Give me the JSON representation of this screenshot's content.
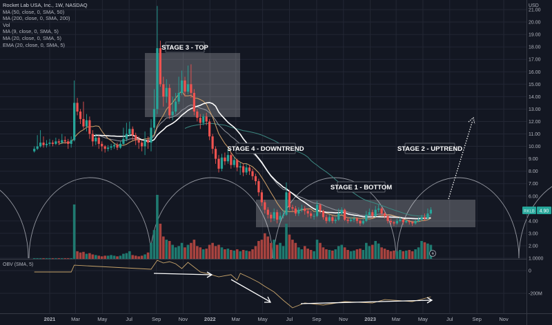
{
  "legend": {
    "title": "Rocket Lab USA, Inc., 1W, NASDAQ",
    "lines": [
      "MA (50, close, 0, SMA, 50)",
      "MA (200, close, 0, SMA, 200)",
      "Vol",
      "MA (9, close, 0, SMA, 5)",
      "MA (20, close, 0, SMA, 5)",
      "EMA (20, close, 0, SMA, 5)"
    ]
  },
  "obv_label": "OBV (SMA, 5)",
  "price_tag": {
    "symbol": "RKLB",
    "value": "4.90",
    "color": "#26a69a"
  },
  "annotations": {
    "stage3": "STAGE 3 - TOP",
    "stage4": "STAGE 4 - DOWNTREND",
    "stage1": "STAGE 1 - BOTTOM",
    "stage2": "STAGE 2 - UPTREND"
  },
  "colors": {
    "background": "#131722",
    "grid": "#232734",
    "up": "#26a69a",
    "down": "#ef5350",
    "up_volume": "#1f7a70",
    "down_volume": "#a8433f",
    "obv": "#c8a46a",
    "ma9": "#d4a36a",
    "ma20": "#ffffff",
    "ema20": "#9598a1",
    "ma50": "#3d8a83"
  },
  "chart_data": {
    "type": "candlestick",
    "interval": "1W",
    "currency": "USD",
    "start_week": "2020-11-27",
    "ylim": [
      1,
      21
    ],
    "y_ticks": [
      "21.00",
      "20.00",
      "19.00",
      "18.00",
      "17.00",
      "16.00",
      "15.00",
      "14.00",
      "13.00",
      "12.00",
      "11.00",
      "10.00",
      "9.00",
      "8.00",
      "7.00",
      "6.00",
      "4.00",
      "3.00",
      "2.00",
      "1.0000"
    ],
    "obv_ticks": [
      {
        "value": 0,
        "label": "0"
      },
      {
        "value": -200,
        "label": "-200M"
      }
    ],
    "x_ticks": [
      {
        "date": "2021-01-01",
        "label": "2021"
      },
      {
        "date": "2021-03-01",
        "label": "Mar"
      },
      {
        "date": "2021-05-01",
        "label": "May"
      },
      {
        "date": "2021-07-01",
        "label": "Jul"
      },
      {
        "date": "2021-09-01",
        "label": "Sep"
      },
      {
        "date": "2021-11-01",
        "label": "Nov"
      },
      {
        "date": "2022-01-01",
        "label": "2022"
      },
      {
        "date": "2022-03-01",
        "label": "Mar"
      },
      {
        "date": "2022-05-01",
        "label": "May"
      },
      {
        "date": "2022-07-01",
        "label": "Jul"
      },
      {
        "date": "2022-09-01",
        "label": "Sep"
      },
      {
        "date": "2022-11-01",
        "label": "Nov"
      },
      {
        "date": "2023-01-01",
        "label": "2023"
      },
      {
        "date": "2023-03-01",
        "label": "Mar"
      },
      {
        "date": "2023-05-01",
        "label": "May"
      },
      {
        "date": "2023-07-01",
        "label": "Jul"
      },
      {
        "date": "2023-09-01",
        "label": "Sep"
      },
      {
        "date": "2023-11-01",
        "label": "Nov"
      }
    ],
    "open": [
      9.6,
      9.8,
      10.0,
      10.3,
      10.1,
      10.2,
      10.3,
      10.2,
      10.4,
      10.3,
      10.5,
      10.4,
      10.2,
      10.5,
      13.5,
      12.8,
      12.2,
      11.6,
      12.1,
      11.0,
      10.4,
      10.7,
      10.2,
      10.0,
      9.8,
      9.9,
      10.0,
      10.1,
      9.9,
      10.2,
      10.6,
      11.0,
      11.4,
      10.9,
      10.5,
      10.3,
      10.0,
      10.5,
      10.3,
      11.5,
      13.0,
      17.9,
      15.0,
      14.0,
      14.7,
      12.5,
      12.8,
      13.6,
      14.3,
      15.3,
      14.4,
      15.0,
      14.3,
      12.8,
      12.3,
      11.9,
      12.4,
      12.0,
      10.8,
      9.8,
      9.0,
      8.2,
      9.1,
      8.8,
      9.3,
      8.5,
      8.9,
      8.3,
      8.4,
      7.9,
      8.3,
      8.0,
      7.6,
      7.2,
      6.3,
      5.5,
      4.9,
      4.5,
      4.2,
      4.7,
      4.1,
      4.4,
      4.5,
      6.3,
      5.1,
      5.0,
      4.6,
      4.9,
      5.0,
      4.8,
      4.6,
      4.4,
      4.4,
      5.3,
      4.8,
      4.3,
      4.0,
      4.3,
      4.0,
      4.1,
      4.6,
      4.9,
      4.1,
      4.0,
      4.1,
      4.2,
      4.0,
      3.8,
      4.0,
      4.5,
      4.7,
      4.4,
      4.9,
      5.0,
      4.6,
      4.4,
      4.0,
      3.9,
      3.8,
      4.0,
      4.1,
      3.9,
      4.0,
      3.9,
      3.8,
      4.0,
      4.1,
      4.3,
      4.2,
      4.6
    ],
    "high": [
      10.0,
      10.9,
      11.3,
      10.8,
      10.5,
      10.6,
      10.5,
      10.7,
      10.6,
      11.0,
      10.8,
      10.6,
      10.8,
      15.3,
      13.9,
      13.0,
      13.6,
      12.6,
      12.4,
      11.3,
      11.0,
      10.9,
      10.4,
      10.1,
      10.1,
      10.2,
      10.3,
      10.3,
      10.4,
      11.5,
      11.9,
      12.0,
      11.6,
      11.1,
      10.8,
      10.5,
      11.2,
      10.8,
      12.2,
      14.6,
      21.3,
      18.5,
      15.6,
      15.4,
      15.0,
      14.0,
      14.3,
      15.6,
      16.1,
      15.6,
      16.5,
      16.6,
      14.6,
      13.0,
      12.6,
      12.6,
      12.7,
      12.2,
      11.0,
      10.0,
      9.3,
      9.4,
      9.5,
      9.8,
      9.5,
      9.2,
      9.0,
      8.7,
      8.6,
      8.6,
      8.5,
      8.2,
      7.8,
      7.4,
      6.5,
      5.7,
      5.1,
      4.7,
      5.0,
      4.9,
      4.7,
      4.9,
      7.1,
      6.5,
      5.3,
      5.2,
      5.1,
      5.3,
      5.2,
      5.0,
      4.8,
      4.6,
      5.6,
      5.4,
      4.9,
      4.5,
      4.5,
      4.4,
      4.3,
      5.0,
      5.1,
      5.0,
      4.3,
      4.3,
      4.4,
      4.3,
      4.1,
      4.2,
      4.8,
      5.0,
      4.9,
      5.2,
      5.3,
      5.1,
      4.7,
      4.5,
      4.2,
      4.0,
      4.2,
      4.3,
      4.2,
      4.1,
      4.1,
      4.0,
      4.1,
      4.3,
      4.5,
      4.6,
      5.0,
      5.1
    ],
    "low": [
      9.5,
      9.7,
      9.9,
      9.9,
      9.9,
      10.0,
      10.0,
      10.1,
      10.1,
      10.2,
      10.2,
      9.8,
      9.9,
      10.4,
      12.5,
      11.8,
      11.4,
      11.2,
      10.6,
      10.0,
      10.1,
      9.8,
      9.6,
      9.5,
      9.6,
      9.7,
      9.8,
      9.7,
      9.8,
      10.1,
      10.4,
      10.8,
      10.5,
      10.1,
      9.8,
      9.6,
      9.3,
      9.8,
      9.6,
      11.0,
      12.6,
      14.8,
      13.2,
      13.5,
      12.2,
      12.1,
      12.6,
      13.4,
      14.1,
      14.0,
      14.2,
      13.9,
      12.5,
      12.0,
      11.4,
      11.7,
      11.7,
      10.5,
      9.4,
      8.6,
      7.9,
      8.0,
      8.5,
      8.6,
      8.2,
      8.3,
      8.0,
      7.7,
      7.6,
      7.7,
      7.7,
      7.3,
      6.9,
      6.0,
      5.2,
      4.6,
      4.2,
      3.9,
      4.0,
      3.8,
      3.9,
      4.2,
      4.4,
      4.9,
      4.7,
      4.4,
      4.4,
      4.7,
      4.5,
      4.3,
      4.2,
      4.1,
      4.3,
      4.6,
      4.1,
      3.8,
      3.9,
      3.8,
      3.8,
      4.0,
      4.5,
      4.0,
      3.8,
      3.9,
      3.9,
      3.8,
      3.6,
      3.7,
      3.9,
      4.4,
      4.2,
      4.3,
      4.7,
      4.4,
      4.2,
      3.8,
      3.7,
      3.6,
      3.7,
      3.9,
      3.7,
      3.8,
      3.7,
      3.6,
      3.7,
      3.9,
      4.0,
      4.0,
      4.1,
      4.5
    ],
    "close": [
      9.8,
      10.0,
      10.3,
      10.1,
      10.2,
      10.3,
      10.2,
      10.4,
      10.3,
      10.5,
      10.4,
      10.2,
      10.5,
      13.5,
      12.8,
      12.2,
      11.6,
      12.1,
      11.0,
      10.4,
      10.7,
      10.2,
      10.0,
      9.8,
      9.9,
      10.0,
      10.1,
      9.9,
      10.2,
      10.6,
      11.0,
      11.4,
      10.9,
      10.5,
      10.3,
      10.0,
      10.5,
      10.3,
      11.5,
      13.0,
      17.9,
      15.0,
      14.0,
      14.7,
      12.5,
      12.8,
      13.6,
      14.3,
      15.3,
      14.4,
      15.0,
      14.3,
      12.8,
      12.3,
      11.9,
      12.4,
      12.0,
      10.8,
      9.8,
      9.0,
      8.2,
      9.1,
      8.8,
      9.3,
      8.5,
      8.9,
      8.3,
      8.4,
      7.9,
      8.3,
      8.0,
      7.6,
      7.2,
      6.3,
      5.5,
      4.9,
      4.5,
      4.2,
      4.7,
      4.1,
      4.4,
      4.5,
      6.3,
      5.1,
      5.0,
      4.6,
      4.9,
      5.0,
      4.8,
      4.6,
      4.4,
      4.4,
      5.3,
      4.8,
      4.3,
      4.0,
      4.3,
      4.0,
      4.1,
      4.6,
      4.9,
      4.1,
      4.0,
      4.1,
      4.2,
      4.0,
      3.8,
      4.0,
      4.5,
      4.7,
      4.4,
      4.9,
      5.0,
      4.6,
      4.4,
      4.0,
      3.9,
      3.8,
      4.0,
      4.1,
      3.9,
      4.0,
      3.9,
      3.8,
      4.0,
      4.1,
      4.3,
      4.2,
      4.6,
      4.9
    ],
    "volume": [
      1,
      1,
      1,
      1,
      1,
      1,
      1,
      1,
      1,
      1,
      1,
      1,
      1,
      85,
      12,
      10,
      11,
      8,
      9,
      7,
      6,
      5,
      4,
      5,
      5,
      6,
      5,
      4,
      5,
      8,
      9,
      12,
      6,
      5,
      4,
      5,
      7,
      10,
      25,
      45,
      100,
      55,
      35,
      30,
      28,
      22,
      18,
      20,
      25,
      18,
      22,
      25,
      30,
      20,
      18,
      15,
      16,
      22,
      25,
      20,
      22,
      18,
      15,
      16,
      14,
      13,
      15,
      12,
      14,
      13,
      12,
      15,
      20,
      28,
      30,
      40,
      35,
      25,
      30,
      22,
      25,
      20,
      55,
      38,
      30,
      25,
      18,
      15,
      20,
      16,
      14,
      12,
      30,
      25,
      18,
      15,
      14,
      13,
      15,
      20,
      22,
      18,
      14,
      12,
      13,
      15,
      16,
      14,
      25,
      20,
      22,
      28,
      24,
      18,
      16,
      14,
      12,
      13,
      12,
      14,
      12,
      13,
      14,
      12,
      15,
      18,
      28,
      26,
      24,
      22
    ],
    "obv_sma": [
      [
        "2020-11-27",
        -12
      ],
      [
        "2021-02-19",
        -12
      ],
      [
        "2021-02-26",
        48
      ],
      [
        "2021-08-20",
        12
      ],
      [
        "2021-09-03",
        91
      ],
      [
        "2021-09-17",
        67
      ],
      [
        "2021-10-01",
        79
      ],
      [
        "2021-10-15",
        60
      ],
      [
        "2021-10-29",
        18
      ],
      [
        "2021-11-12",
        73
      ],
      [
        "2021-11-26",
        30
      ],
      [
        "2021-12-10",
        -12
      ],
      [
        "2021-12-24",
        -24
      ],
      [
        "2022-01-21",
        -55
      ],
      [
        "2022-02-18",
        -36
      ],
      [
        "2022-03-04",
        -85
      ],
      [
        "2022-03-11",
        -24
      ],
      [
        "2022-04-01",
        -61
      ],
      [
        "2022-04-22",
        -103
      ],
      [
        "2022-05-06",
        -139
      ],
      [
        "2022-05-27",
        -188
      ],
      [
        "2022-06-17",
        -261
      ],
      [
        "2022-07-08",
        -327
      ],
      [
        "2022-08-05",
        -285
      ],
      [
        "2022-09-16",
        -303
      ],
      [
        "2022-11-04",
        -273
      ],
      [
        "2023-01-06",
        -285
      ],
      [
        "2023-02-03",
        -255
      ],
      [
        "2023-04-07",
        -273
      ],
      [
        "2023-05-19",
        -230
      ]
    ]
  }
}
